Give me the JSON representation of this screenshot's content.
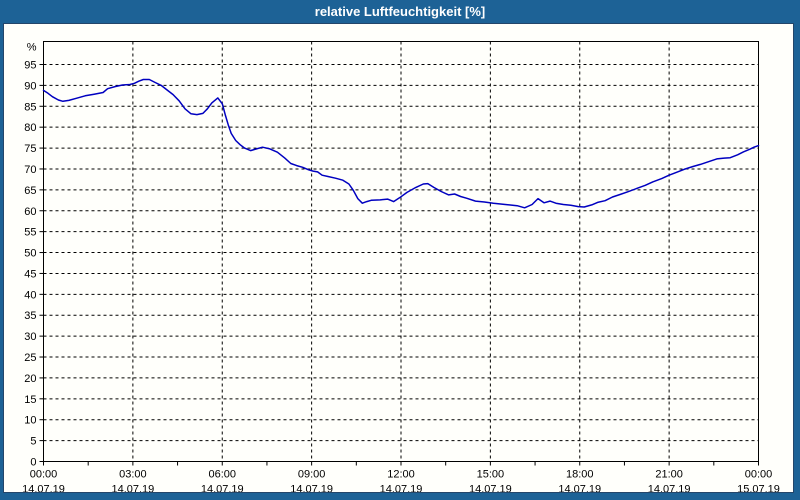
{
  "window": {
    "title": "relative Luftfeuchtigkeit [%]"
  },
  "colors": {
    "titlebar": "#1d6296",
    "frame": "#1d6296",
    "panel": "#fffffb",
    "title_text": "#ffffff",
    "line": "#0000c0",
    "grid": "#000000",
    "text": "#000000"
  },
  "chart_data": {
    "type": "line",
    "title": "relative Luftfeuchtigkeit [%]",
    "xlabel": "",
    "ylabel": "%",
    "unit_label": "%",
    "grid": true,
    "grid_style": "dashed",
    "ylim": [
      0,
      100.5
    ],
    "y_tick_step": 5,
    "y_ticks": [
      0,
      5,
      10,
      15,
      20,
      25,
      30,
      35,
      40,
      45,
      50,
      55,
      60,
      65,
      70,
      75,
      80,
      85,
      90,
      95
    ],
    "x_hours_range": [
      0,
      24
    ],
    "x_minor_tick_hours": 1.5,
    "x_ticks": [
      {
        "h": 0,
        "time": "00:00",
        "date": "14.07.19"
      },
      {
        "h": 3,
        "time": "03:00",
        "date": "14.07.19"
      },
      {
        "h": 6,
        "time": "06:00",
        "date": "14.07.19"
      },
      {
        "h": 9,
        "time": "09:00",
        "date": "14.07.19"
      },
      {
        "h": 12,
        "time": "12:00",
        "date": "14.07.19"
      },
      {
        "h": 15,
        "time": "15:00",
        "date": "14.07.19"
      },
      {
        "h": 18,
        "time": "18:00",
        "date": "14.07.19"
      },
      {
        "h": 21,
        "time": "21:00",
        "date": "14.07.19"
      },
      {
        "h": 24,
        "time": "00:00",
        "date": "15.07.19"
      }
    ],
    "series": [
      {
        "name": "relative Luftfeuchtigkeit",
        "unit": "%",
        "points": [
          [
            0,
            88.8
          ],
          [
            0.15,
            88.1
          ],
          [
            0.3,
            87.3
          ],
          [
            0.5,
            86.5
          ],
          [
            0.65,
            86.2
          ],
          [
            0.85,
            86.4
          ],
          [
            1.1,
            86.9
          ],
          [
            1.4,
            87.5
          ],
          [
            1.7,
            87.9
          ],
          [
            2.0,
            88.3
          ],
          [
            2.15,
            89.2
          ],
          [
            2.4,
            89.7
          ],
          [
            2.65,
            90.1
          ],
          [
            2.9,
            90.2
          ],
          [
            3.05,
            90.5
          ],
          [
            3.2,
            91.0
          ],
          [
            3.35,
            91.4
          ],
          [
            3.55,
            91.4
          ],
          [
            3.75,
            90.7
          ],
          [
            3.95,
            90.0
          ],
          [
            4.15,
            88.9
          ],
          [
            4.35,
            87.8
          ],
          [
            4.55,
            86.3
          ],
          [
            4.75,
            84.4
          ],
          [
            4.95,
            83.2
          ],
          [
            5.15,
            83.0
          ],
          [
            5.35,
            83.3
          ],
          [
            5.5,
            84.4
          ],
          [
            5.65,
            85.8
          ],
          [
            5.85,
            87.0
          ],
          [
            6.0,
            85.6
          ],
          [
            6.1,
            83.0
          ],
          [
            6.2,
            80.6
          ],
          [
            6.3,
            78.5
          ],
          [
            6.45,
            76.8
          ],
          [
            6.6,
            75.8
          ],
          [
            6.75,
            75.0
          ],
          [
            6.95,
            74.4
          ],
          [
            7.15,
            74.8
          ],
          [
            7.35,
            75.2
          ],
          [
            7.6,
            74.8
          ],
          [
            7.85,
            74.0
          ],
          [
            8.1,
            72.6
          ],
          [
            8.3,
            71.3
          ],
          [
            8.5,
            70.8
          ],
          [
            8.7,
            70.4
          ],
          [
            8.9,
            69.8
          ],
          [
            9.05,
            69.5
          ],
          [
            9.2,
            69.3
          ],
          [
            9.35,
            68.5
          ],
          [
            9.55,
            68.2
          ],
          [
            9.8,
            67.8
          ],
          [
            10.05,
            67.3
          ],
          [
            10.25,
            66.4
          ],
          [
            10.4,
            64.9
          ],
          [
            10.55,
            62.9
          ],
          [
            10.7,
            61.8
          ],
          [
            10.85,
            62.2
          ],
          [
            11.0,
            62.5
          ],
          [
            11.3,
            62.6
          ],
          [
            11.55,
            62.8
          ],
          [
            11.75,
            62.2
          ],
          [
            11.95,
            63.1
          ],
          [
            12.2,
            64.4
          ],
          [
            12.5,
            65.6
          ],
          [
            12.75,
            66.4
          ],
          [
            12.9,
            66.5
          ],
          [
            13.1,
            65.6
          ],
          [
            13.35,
            64.6
          ],
          [
            13.6,
            63.8
          ],
          [
            13.8,
            64.0
          ],
          [
            14.0,
            63.4
          ],
          [
            14.2,
            63.0
          ],
          [
            14.5,
            62.3
          ],
          [
            14.8,
            62.1
          ],
          [
            15.1,
            61.8
          ],
          [
            15.5,
            61.5
          ],
          [
            15.9,
            61.2
          ],
          [
            16.15,
            60.7
          ],
          [
            16.4,
            61.5
          ],
          [
            16.6,
            62.9
          ],
          [
            16.8,
            61.9
          ],
          [
            17.0,
            62.3
          ],
          [
            17.2,
            61.8
          ],
          [
            17.45,
            61.5
          ],
          [
            17.7,
            61.3
          ],
          [
            17.95,
            61.0
          ],
          [
            18.15,
            60.9
          ],
          [
            18.4,
            61.4
          ],
          [
            18.6,
            62.0
          ],
          [
            18.85,
            62.4
          ],
          [
            19.1,
            63.3
          ],
          [
            19.35,
            63.9
          ],
          [
            19.6,
            64.5
          ],
          [
            19.9,
            65.3
          ],
          [
            20.2,
            66.1
          ],
          [
            20.45,
            66.9
          ],
          [
            20.75,
            67.7
          ],
          [
            21.0,
            68.5
          ],
          [
            21.25,
            69.2
          ],
          [
            21.5,
            69.9
          ],
          [
            21.8,
            70.6
          ],
          [
            22.05,
            71.1
          ],
          [
            22.35,
            71.8
          ],
          [
            22.6,
            72.4
          ],
          [
            22.85,
            72.6
          ],
          [
            23.05,
            72.7
          ],
          [
            23.3,
            73.4
          ],
          [
            23.5,
            74.1
          ],
          [
            23.7,
            74.7
          ],
          [
            23.85,
            75.2
          ],
          [
            24.0,
            75.6
          ]
        ]
      }
    ]
  }
}
